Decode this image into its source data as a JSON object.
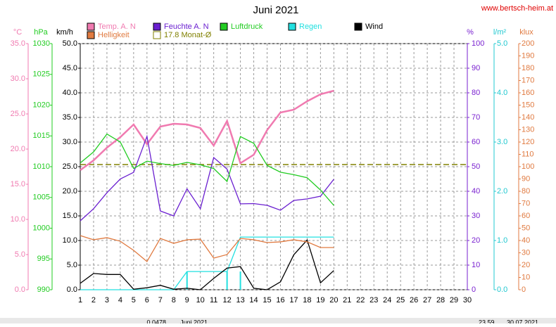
{
  "chart_data": {
    "type": "line",
    "title": "Juni 2021",
    "site": "www.bertsch-heim.at",
    "x": [
      1,
      2,
      3,
      4,
      5,
      6,
      7,
      8,
      9,
      10,
      11,
      12,
      13,
      14,
      15,
      16,
      17,
      18,
      19,
      20
    ],
    "xlim": [
      1,
      30
    ],
    "xticks": [
      1,
      2,
      3,
      4,
      5,
      6,
      7,
      8,
      9,
      10,
      11,
      12,
      13,
      14,
      15,
      16,
      17,
      18,
      19,
      20,
      21,
      22,
      23,
      24,
      25,
      26,
      27,
      28,
      29,
      30
    ],
    "grid": true,
    "axes": [
      {
        "unit": "°C",
        "color": "#f07ab0",
        "lim": [
          0,
          35
        ],
        "ticks": [
          {
            "value": 0,
            "label": "0.0"
          },
          {
            "value": 5,
            "label": "5.0"
          },
          {
            "value": 10,
            "label": "10.0"
          },
          {
            "value": 15,
            "label": "15.0"
          },
          {
            "value": 20,
            "label": "20.0"
          },
          {
            "value": 25,
            "label": "25.0"
          },
          {
            "value": 30,
            "label": "30.0"
          },
          {
            "value": 35,
            "label": "35.0"
          }
        ]
      },
      {
        "unit": "hPa",
        "color": "#22cc22",
        "lim": [
          990,
          1030
        ],
        "ticks": [
          990,
          995,
          1000,
          1005,
          1010,
          1015,
          1020,
          1025,
          1030
        ]
      },
      {
        "unit": "km/h",
        "color": "#000000",
        "lim": [
          0,
          50
        ],
        "ticks": [
          {
            "value": 0,
            "label": "0.0"
          },
          {
            "value": 5,
            "label": "5.0"
          },
          {
            "value": 10,
            "label": "10.0"
          },
          {
            "value": 15,
            "label": "15.0"
          },
          {
            "value": 20,
            "label": "20.0"
          },
          {
            "value": 25,
            "label": "25.0"
          },
          {
            "value": 30,
            "label": "30.0"
          },
          {
            "value": 35,
            "label": "35.0"
          },
          {
            "value": 40,
            "label": "40.0"
          },
          {
            "value": 45,
            "label": "45.0"
          },
          {
            "value": 50,
            "label": "50.0"
          }
        ]
      },
      {
        "unit": "%",
        "color": "#7a22d0",
        "lim": [
          0,
          100
        ],
        "ticks": [
          0,
          10,
          20,
          30,
          40,
          50,
          60,
          70,
          80,
          90,
          100
        ]
      },
      {
        "unit": "l/m²",
        "color": "#20c8d0",
        "lim": [
          0,
          5
        ],
        "ticks": [
          {
            "value": 0,
            "label": "0.0"
          },
          {
            "value": 1,
            "label": "1.0"
          },
          {
            "value": 2,
            "label": "2.0"
          },
          {
            "value": 3,
            "label": "3.0"
          },
          {
            "value": 4,
            "label": "4.0"
          },
          {
            "value": 5,
            "label": "5.0"
          }
        ]
      },
      {
        "unit": "klux",
        "color": "#e07a40",
        "lim": [
          0,
          200
        ],
        "ticks": [
          0,
          10,
          20,
          30,
          40,
          50,
          60,
          70,
          80,
          90,
          100,
          110,
          120,
          130,
          140,
          150,
          160,
          170,
          180,
          190,
          200
        ]
      }
    ],
    "series": [
      {
        "name": "Temp. A. N",
        "color": "#f07ab0",
        "axis": 0,
        "values": [
          17.0,
          18.4,
          20.2,
          21.7,
          23.5,
          20.7,
          23.2,
          23.6,
          23.5,
          23.0,
          20.5,
          24.0,
          18.0,
          19.2,
          22.7,
          25.2,
          25.6,
          26.8,
          27.8,
          28.3
        ]
      },
      {
        "name": "Feuchte A. N",
        "color": "#6a1fd0",
        "axis": 3,
        "values": [
          28,
          32.9,
          39.4,
          45,
          47.7,
          62.3,
          32,
          30,
          41,
          32.9,
          53.7,
          49,
          34.9,
          35,
          34.3,
          32.3,
          36.3,
          36.9,
          38,
          44.9
        ]
      },
      {
        "name": "Luftdruck",
        "color": "#22cc22",
        "axis": 1,
        "values": [
          1010.6,
          1012.4,
          1015.3,
          1014.0,
          1009.7,
          1010.9,
          1010.5,
          1010.2,
          1010.7,
          1010.3,
          1009.7,
          1007.6,
          1014.9,
          1013.8,
          1010.2,
          1009.1,
          1008.7,
          1008.2,
          1006.2,
          1003.7
        ]
      },
      {
        "name": "Regen",
        "color": "#22e0e0",
        "axis": 4,
        "values": [
          0,
          0,
          0,
          0,
          0,
          0,
          0,
          0,
          0.37,
          0.37,
          0.37,
          0.37,
          1.07,
          1.07,
          1.07,
          1.07,
          1.07,
          1.07,
          1.07,
          1.07
        ],
        "bars": [
          null,
          null,
          null,
          null,
          null,
          null,
          null,
          null,
          0.37,
          null,
          null,
          0.37,
          0.37,
          null,
          null,
          null,
          null,
          null,
          null,
          null
        ]
      },
      {
        "name": "Wind",
        "color": "#000000",
        "axis": 2,
        "values": [
          1.3,
          3.3,
          3.1,
          3.1,
          0.1,
          0.4,
          0.9,
          0.1,
          0.3,
          0,
          2.3,
          4.4,
          4.7,
          0.3,
          0,
          1.6,
          7.1,
          10.1,
          1.4,
          3.9
        ]
      },
      {
        "name": "Helligkeit",
        "color": "#e07a40",
        "axis": 5,
        "values": [
          44,
          40.6,
          42.3,
          39.4,
          32,
          22.9,
          41.7,
          37.7,
          40.6,
          41.1,
          25.7,
          28.6,
          41.7,
          40.6,
          38.3,
          38.9,
          40.6,
          38.9,
          34.3,
          34.3
        ]
      }
    ],
    "reference": {
      "label": "17.8 Monat-Ø",
      "value": 17.8,
      "axis": 0,
      "color": "#808000"
    },
    "status": [
      "0.0478",
      "Juni 2021",
      "23.59",
      "30.07.2021"
    ]
  }
}
